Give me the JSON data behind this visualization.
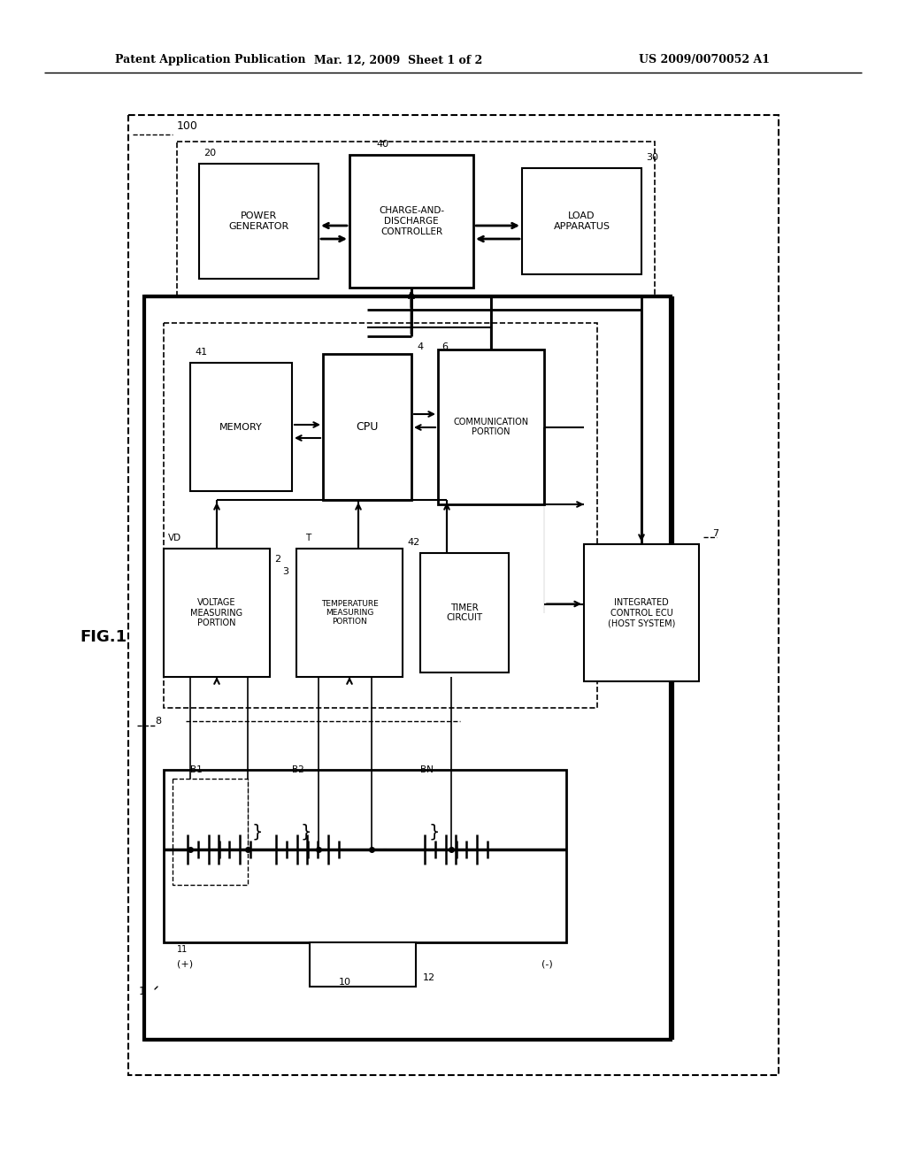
{
  "title_left": "Patent Application Publication",
  "title_mid": "Mar. 12, 2009  Sheet 1 of 2",
  "title_right": "US 2009/0070052 A1",
  "fig_label": "FIG.1",
  "bg_color": "#ffffff",
  "line_color": "#000000"
}
